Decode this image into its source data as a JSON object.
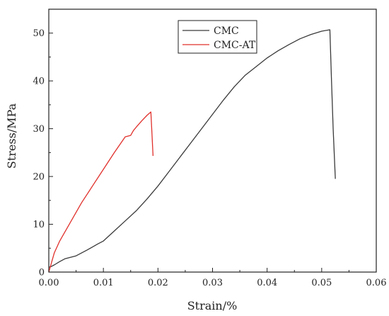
{
  "chart_data": {
    "type": "line",
    "xlabel": "Strain/%",
    "ylabel": "Stress/MPa",
    "xlim": [
      0,
      0.06
    ],
    "ylim": [
      0,
      55
    ],
    "xticks": [
      "0.00",
      "0.01",
      "0.02",
      "0.03",
      "0.04",
      "0.05",
      "0.06"
    ],
    "yticks": [
      "0",
      "10",
      "20",
      "30",
      "40",
      "50"
    ],
    "xtick_values": [
      0,
      0.01,
      0.02,
      0.03,
      0.04,
      0.05,
      0.06
    ],
    "ytick_values": [
      0,
      10,
      20,
      30,
      40,
      50
    ],
    "grid": false,
    "legend_position": "top-center",
    "series": [
      {
        "name": "CMC",
        "color": "#3a3a3a",
        "x": [
          0.0,
          0.0005,
          0.001,
          0.002,
          0.003,
          0.005,
          0.007,
          0.009,
          0.01,
          0.012,
          0.014,
          0.016,
          0.018,
          0.02,
          0.022,
          0.024,
          0.026,
          0.028,
          0.03,
          0.032,
          0.034,
          0.036,
          0.038,
          0.04,
          0.042,
          0.044,
          0.046,
          0.048,
          0.05,
          0.0515,
          0.0518,
          0.0521,
          0.0525
        ],
        "y": [
          1.0,
          1.2,
          1.5,
          2.2,
          2.8,
          3.4,
          4.6,
          5.9,
          6.5,
          8.6,
          10.7,
          12.8,
          15.3,
          18.0,
          21.0,
          24.0,
          27.0,
          30.0,
          33.0,
          36.0,
          38.8,
          41.2,
          43.0,
          44.8,
          46.3,
          47.6,
          48.8,
          49.7,
          50.4,
          50.7,
          40.0,
          30.0,
          19.5
        ]
      },
      {
        "name": "CMC-AT",
        "color": "#e0302b",
        "x": [
          0.0,
          0.0005,
          0.001,
          0.002,
          0.004,
          0.006,
          0.008,
          0.01,
          0.012,
          0.014,
          0.015,
          0.0155,
          0.016,
          0.017,
          0.018,
          0.0187,
          0.0189,
          0.0191
        ],
        "y": [
          0.0,
          2.0,
          4.0,
          6.5,
          10.5,
          14.5,
          18.0,
          21.5,
          25.0,
          28.3,
          28.6,
          29.6,
          30.3,
          31.6,
          32.8,
          33.5,
          29.0,
          24.3
        ]
      }
    ]
  }
}
